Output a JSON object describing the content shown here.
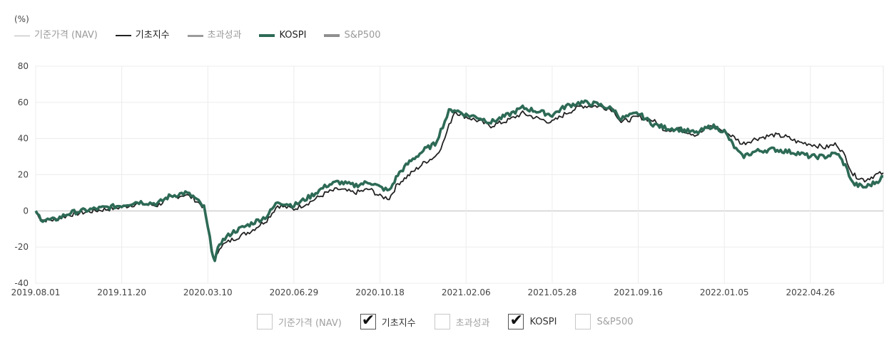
{
  "unit_label": "(%)",
  "legend": [
    {
      "label": "기준가격 (NAV)",
      "color": "#b5b5b5",
      "weight": "thin",
      "active": false
    },
    {
      "label": "기초지수",
      "color": "#222222",
      "weight": "medium",
      "active": true
    },
    {
      "label": "초과성과",
      "color": "#9b9b9b",
      "weight": "medium",
      "active": false
    },
    {
      "label": "KOSPI",
      "color": "#2d6a55",
      "weight": "thick",
      "active": true
    },
    {
      "label": "S&P500",
      "color": "#8f8f8f",
      "weight": "thick",
      "active": false
    }
  ],
  "controls": [
    {
      "label": "기준가격 (NAV)",
      "checked": false,
      "icon": "checkbox-icon"
    },
    {
      "label": "기초지수",
      "checked": true,
      "icon": "checkmark-icon"
    },
    {
      "label": "초과성과",
      "checked": false,
      "icon": "checkbox-icon"
    },
    {
      "label": "KOSPI",
      "checked": true,
      "icon": "checkmark-icon"
    },
    {
      "label": "S&P500",
      "checked": false,
      "icon": "checkbox-icon"
    }
  ],
  "chart_data": {
    "type": "line",
    "title": "",
    "xlabel": "",
    "ylabel": "(%)",
    "ylim": [
      -40,
      80
    ],
    "yticks": [
      80,
      60,
      40,
      20,
      0,
      -20,
      -40
    ],
    "xlim": [
      "2019-08-01",
      "2022-07-29"
    ],
    "xticks": [
      "2019.08.01",
      "2019.11.20",
      "2020.03.10",
      "2020.06.29",
      "2020.10.18",
      "2021.02.06",
      "2021.05.28",
      "2021.09.16",
      "2022.01.05",
      "2022.04.26"
    ],
    "grid": true,
    "legend_position": "top-left",
    "series": [
      {
        "name": "기초지수",
        "color": "#222222",
        "points": [
          [
            "2019-08-01",
            -1
          ],
          [
            "2019-08-10",
            -5
          ],
          [
            "2019-08-25",
            -5
          ],
          [
            "2019-09-15",
            -2
          ],
          [
            "2019-10-15",
            0
          ],
          [
            "2019-11-20",
            2
          ],
          [
            "2019-12-10",
            4
          ],
          [
            "2020-01-05",
            3
          ],
          [
            "2020-01-20",
            7
          ],
          [
            "2020-02-10",
            9
          ],
          [
            "2020-02-20",
            7
          ],
          [
            "2020-03-05",
            2
          ],
          [
            "2020-03-15",
            -20
          ],
          [
            "2020-03-19",
            -28
          ],
          [
            "2020-03-25",
            -20
          ],
          [
            "2020-04-10",
            -16
          ],
          [
            "2020-05-05",
            -11
          ],
          [
            "2020-05-25",
            -5
          ],
          [
            "2020-06-08",
            3
          ],
          [
            "2020-06-29",
            1
          ],
          [
            "2020-07-20",
            5
          ],
          [
            "2020-08-10",
            10
          ],
          [
            "2020-08-25",
            12
          ],
          [
            "2020-09-15",
            10
          ],
          [
            "2020-10-05",
            12
          ],
          [
            "2020-10-18",
            8
          ],
          [
            "2020-10-30",
            7
          ],
          [
            "2020-11-10",
            15
          ],
          [
            "2020-11-25",
            20
          ],
          [
            "2020-12-15",
            27
          ],
          [
            "2020-12-28",
            30
          ],
          [
            "2021-01-07",
            37
          ],
          [
            "2021-01-15",
            47
          ],
          [
            "2021-01-22",
            55
          ],
          [
            "2021-02-06",
            52
          ],
          [
            "2021-02-20",
            50
          ],
          [
            "2021-03-10",
            47
          ],
          [
            "2021-04-01",
            50
          ],
          [
            "2021-04-20",
            54
          ],
          [
            "2021-05-10",
            51
          ],
          [
            "2021-05-28",
            49
          ],
          [
            "2021-06-15",
            54
          ],
          [
            "2021-07-05",
            58
          ],
          [
            "2021-07-25",
            58
          ],
          [
            "2021-08-15",
            56
          ],
          [
            "2021-08-25",
            49
          ],
          [
            "2021-09-16",
            52
          ],
          [
            "2021-10-05",
            50
          ],
          [
            "2021-10-20",
            45
          ],
          [
            "2021-11-10",
            45
          ],
          [
            "2021-11-30",
            42
          ],
          [
            "2021-12-20",
            47
          ],
          [
            "2022-01-05",
            44
          ],
          [
            "2022-01-20",
            40
          ],
          [
            "2022-01-28",
            37
          ],
          [
            "2022-02-15",
            40
          ],
          [
            "2022-03-10",
            42
          ],
          [
            "2022-03-25",
            41
          ],
          [
            "2022-04-10",
            38
          ],
          [
            "2022-04-26",
            37
          ],
          [
            "2022-05-15",
            35
          ],
          [
            "2022-05-30",
            37
          ],
          [
            "2022-06-10",
            30
          ],
          [
            "2022-06-20",
            20
          ],
          [
            "2022-07-05",
            17
          ],
          [
            "2022-07-20",
            20
          ],
          [
            "2022-07-29",
            21
          ]
        ]
      },
      {
        "name": "KOSPI",
        "color": "#2d6a55",
        "points": [
          [
            "2019-08-01",
            -1
          ],
          [
            "2019-08-10",
            -5
          ],
          [
            "2019-08-25",
            -5
          ],
          [
            "2019-09-15",
            -1
          ],
          [
            "2019-10-15",
            1
          ],
          [
            "2019-11-20",
            3
          ],
          [
            "2019-12-10",
            5
          ],
          [
            "2020-01-05",
            4
          ],
          [
            "2020-01-20",
            8
          ],
          [
            "2020-02-10",
            10
          ],
          [
            "2020-02-20",
            8
          ],
          [
            "2020-03-05",
            2
          ],
          [
            "2020-03-15",
            -21
          ],
          [
            "2020-03-19",
            -28
          ],
          [
            "2020-03-25",
            -18
          ],
          [
            "2020-04-10",
            -12
          ],
          [
            "2020-05-05",
            -7
          ],
          [
            "2020-05-25",
            -3
          ],
          [
            "2020-06-08",
            5
          ],
          [
            "2020-06-29",
            3
          ],
          [
            "2020-07-20",
            8
          ],
          [
            "2020-08-10",
            14
          ],
          [
            "2020-08-25",
            16
          ],
          [
            "2020-09-15",
            14
          ],
          [
            "2020-10-05",
            16
          ],
          [
            "2020-10-18",
            13
          ],
          [
            "2020-10-30",
            11
          ],
          [
            "2020-11-10",
            20
          ],
          [
            "2020-11-25",
            27
          ],
          [
            "2020-12-15",
            34
          ],
          [
            "2020-12-28",
            37
          ],
          [
            "2021-01-07",
            47
          ],
          [
            "2021-01-15",
            55
          ],
          [
            "2021-01-22",
            56
          ],
          [
            "2021-02-06",
            53
          ],
          [
            "2021-02-20",
            52
          ],
          [
            "2021-03-10",
            49
          ],
          [
            "2021-04-01",
            53
          ],
          [
            "2021-04-20",
            57
          ],
          [
            "2021-05-10",
            55
          ],
          [
            "2021-05-28",
            53
          ],
          [
            "2021-06-15",
            58
          ],
          [
            "2021-07-05",
            60
          ],
          [
            "2021-07-25",
            59
          ],
          [
            "2021-08-15",
            56
          ],
          [
            "2021-08-25",
            51
          ],
          [
            "2021-09-16",
            54
          ],
          [
            "2021-10-05",
            48
          ],
          [
            "2021-10-20",
            46
          ],
          [
            "2021-11-10",
            45
          ],
          [
            "2021-11-30",
            43
          ],
          [
            "2021-12-20",
            47
          ],
          [
            "2022-01-05",
            44
          ],
          [
            "2022-01-20",
            34
          ],
          [
            "2022-01-28",
            30
          ],
          [
            "2022-02-15",
            33
          ],
          [
            "2022-03-10",
            34
          ],
          [
            "2022-03-25",
            33
          ],
          [
            "2022-04-10",
            32
          ],
          [
            "2022-04-26",
            30
          ],
          [
            "2022-05-15",
            30
          ],
          [
            "2022-05-30",
            32
          ],
          [
            "2022-06-10",
            25
          ],
          [
            "2022-06-20",
            15
          ],
          [
            "2022-07-05",
            13
          ],
          [
            "2022-07-20",
            16
          ],
          [
            "2022-07-29",
            19
          ]
        ]
      }
    ]
  }
}
